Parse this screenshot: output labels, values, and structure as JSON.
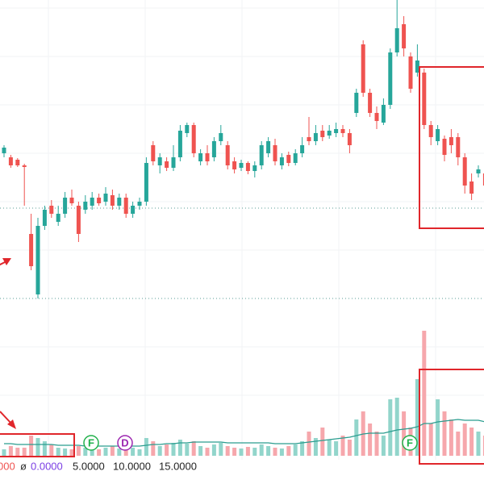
{
  "chart_data": {
    "type": "candlestick",
    "up_color": "#26a69a",
    "down_color": "#ef5350",
    "volume_up_color": "#92d5cb",
    "volume_down_color": "#f6a7ac",
    "volume_ma_color": "#2a9d8f",
    "ylim": [
      0,
      600
    ],
    "volume_ylim": [
      0,
      160
    ],
    "price_lines": [
      342,
      230
    ],
    "candles": [
      [
        410,
        420,
        405,
        417
      ],
      [
        405,
        408,
        392,
        395
      ],
      [
        402,
        404,
        393,
        395
      ],
      [
        395,
        397,
        345,
        393
      ],
      [
        310,
        335,
        265,
        270
      ],
      [
        235,
        330,
        230,
        320
      ],
      [
        320,
        345,
        315,
        340
      ],
      [
        345,
        352,
        330,
        335
      ],
      [
        325,
        345,
        320,
        335
      ],
      [
        335,
        362,
        330,
        355
      ],
      [
        355,
        365,
        345,
        348
      ],
      [
        345,
        350,
        300,
        310
      ],
      [
        340,
        358,
        335,
        350
      ],
      [
        345,
        362,
        340,
        355
      ],
      [
        355,
        360,
        345,
        348
      ],
      [
        350,
        368,
        345,
        360
      ],
      [
        358,
        365,
        340,
        345
      ],
      [
        345,
        360,
        340,
        355
      ],
      [
        355,
        360,
        330,
        335
      ],
      [
        335,
        350,
        330,
        345
      ],
      [
        345,
        355,
        340,
        350
      ],
      [
        350,
        405,
        345,
        398
      ],
      [
        420,
        425,
        395,
        400
      ],
      [
        395,
        410,
        385,
        405
      ],
      [
        400,
        405,
        388,
        392
      ],
      [
        392,
        420,
        388,
        405
      ],
      [
        405,
        445,
        400,
        438
      ],
      [
        435,
        448,
        430,
        445
      ],
      [
        445,
        448,
        405,
        410
      ],
      [
        400,
        415,
        395,
        410
      ],
      [
        410,
        420,
        395,
        400
      ],
      [
        405,
        430,
        400,
        425
      ],
      [
        425,
        445,
        420,
        435
      ],
      [
        420,
        425,
        390,
        395
      ],
      [
        400,
        405,
        385,
        390
      ],
      [
        392,
        402,
        388,
        398
      ],
      [
        398,
        400,
        384,
        388
      ],
      [
        388,
        400,
        380,
        395
      ],
      [
        395,
        425,
        390,
        420
      ],
      [
        410,
        430,
        405,
        425
      ],
      [
        420,
        428,
        395,
        400
      ],
      [
        395,
        410,
        390,
        405
      ],
      [
        408,
        412,
        394,
        398
      ],
      [
        398,
        415,
        395,
        410
      ],
      [
        410,
        430,
        405,
        420
      ],
      [
        430,
        455,
        420,
        425
      ],
      [
        425,
        445,
        420,
        435
      ],
      [
        438,
        445,
        425,
        430
      ],
      [
        432,
        445,
        428,
        438
      ],
      [
        435,
        448,
        430,
        440
      ],
      [
        440,
        445,
        430,
        435
      ],
      [
        435,
        440,
        410,
        420
      ],
      [
        460,
        490,
        455,
        485
      ],
      [
        545,
        550,
        480,
        485
      ],
      [
        485,
        490,
        455,
        460
      ],
      [
        460,
        468,
        440,
        450
      ],
      [
        448,
        478,
        445,
        470
      ],
      [
        470,
        540,
        465,
        535
      ],
      [
        535,
        600,
        530,
        565
      ],
      [
        570,
        580,
        530,
        540
      ],
      [
        530,
        535,
        485,
        490
      ],
      [
        510,
        545,
        505,
        525
      ],
      [
        510,
        515,
        440,
        445
      ],
      [
        445,
        450,
        420,
        430
      ],
      [
        425,
        445,
        420,
        440
      ],
      [
        428,
        432,
        400,
        408
      ],
      [
        430,
        440,
        410,
        420
      ],
      [
        430,
        435,
        395,
        405
      ],
      [
        405,
        410,
        360,
        370
      ],
      [
        375,
        385,
        352,
        360
      ],
      [
        385,
        395,
        380,
        390
      ],
      [
        385,
        392,
        360,
        370
      ]
    ],
    "volume": [
      8,
      12,
      10,
      10,
      25,
      22,
      18,
      14,
      10,
      9,
      8,
      12,
      10,
      9,
      8,
      10,
      12,
      9,
      14,
      10,
      8,
      22,
      18,
      12,
      14,
      16,
      20,
      15,
      18,
      12,
      10,
      14,
      16,
      12,
      10,
      9,
      11,
      10,
      14,
      12,
      10,
      9,
      12,
      14,
      18,
      30,
      22,
      35,
      20,
      18,
      25,
      20,
      45,
      55,
      40,
      30,
      25,
      70,
      72,
      55,
      35,
      95,
      155,
      40,
      70,
      55,
      45,
      30,
      40,
      35,
      30,
      25
    ],
    "volume_ma": [
      15,
      15,
      14,
      14,
      14,
      14,
      14,
      14,
      13,
      13,
      13,
      13,
      12,
      12,
      12,
      12,
      12,
      12,
      12,
      12,
      12,
      13,
      14,
      14,
      15,
      15,
      16,
      16,
      17,
      17,
      17,
      17,
      17,
      16,
      16,
      16,
      16,
      16,
      16,
      16,
      15,
      15,
      15,
      15,
      16,
      17,
      18,
      19,
      20,
      21,
      22,
      23,
      25,
      27,
      28,
      28,
      28,
      30,
      32,
      33,
      34,
      36,
      40,
      40,
      42,
      43,
      44,
      45,
      44,
      44,
      44,
      42
    ],
    "events": [
      {
        "label": "F",
        "color": "#22b14c"
      },
      {
        "label": "D",
        "color": "#9c27b0"
      },
      {
        "label": "F",
        "color": "#22b14c"
      }
    ],
    "indicator_labels": [
      {
        "text": "000",
        "color": "#ef5350"
      },
      {
        "text": "ø",
        "color": "#333333"
      },
      {
        "text": "0.0000",
        "color": "#7b3fe4"
      },
      {
        "text": "5.0000",
        "color": "#222222"
      },
      {
        "text": "10.0000",
        "color": "#222222"
      },
      {
        "text": "15.0000",
        "color": "#222222"
      }
    ]
  }
}
